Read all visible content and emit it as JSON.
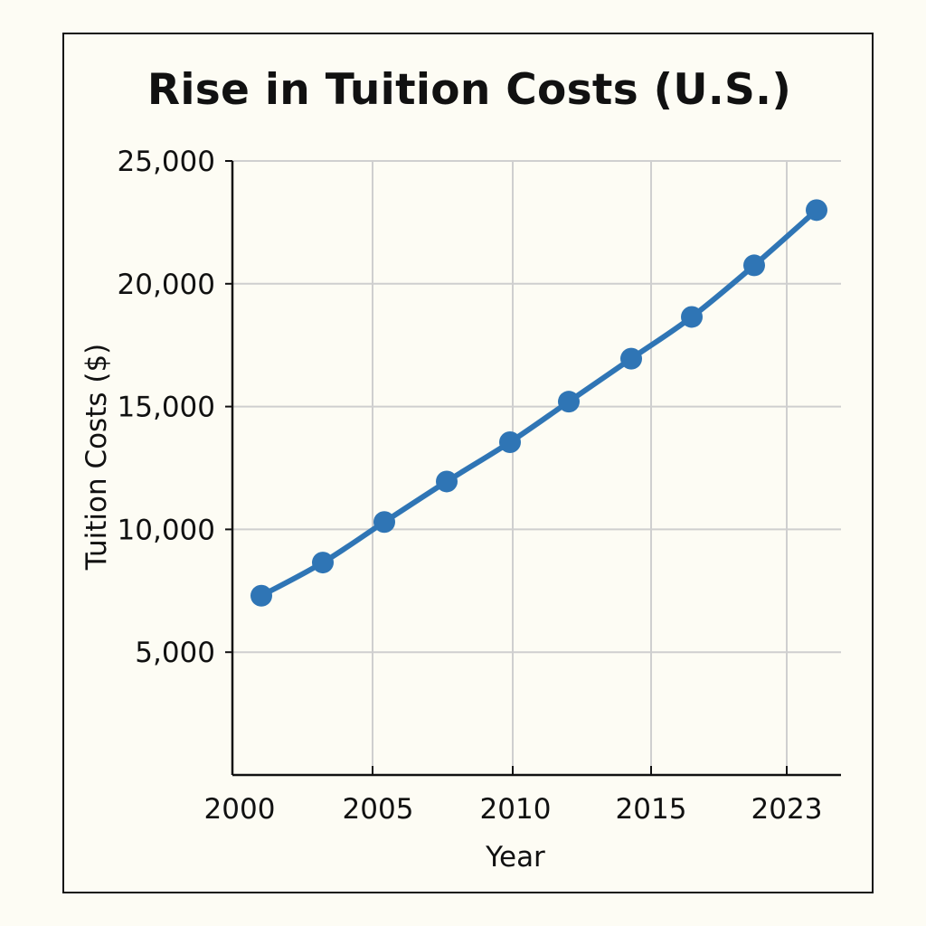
{
  "chart_data": {
    "type": "line",
    "title": "Rise in Tuition Costs (U.S.)",
    "xlabel": "Year",
    "ylabel": "Tuition Costs ($)",
    "x_ticks": [
      "2000",
      "2005",
      "2010",
      "2015",
      "2023"
    ],
    "y_ticks": [
      "5,000",
      "10,000",
      "15,000",
      "20,000",
      "25,000"
    ],
    "ylim": [
      0,
      25000
    ],
    "grid": true,
    "series": [
      {
        "values": [
          {
            "x": "2000",
            "y": 7300
          },
          {
            "x": "2002",
            "y": 8650
          },
          {
            "x": "2005",
            "y": 10300
          },
          {
            "x": "2007",
            "y": 11950
          },
          {
            "x": "2010",
            "y": 13550
          },
          {
            "x": "2012",
            "y": 15200
          },
          {
            "x": "2014",
            "y": 16950
          },
          {
            "x": "2017",
            "y": 18650
          },
          {
            "x": "2020",
            "y": 20750
          },
          {
            "x": "2023",
            "y": 23000
          }
        ]
      }
    ],
    "colors": {
      "line": "#2f75b5",
      "grid": "#cfcfcf",
      "axis": "#111111",
      "background": "#fdfcf4"
    }
  }
}
